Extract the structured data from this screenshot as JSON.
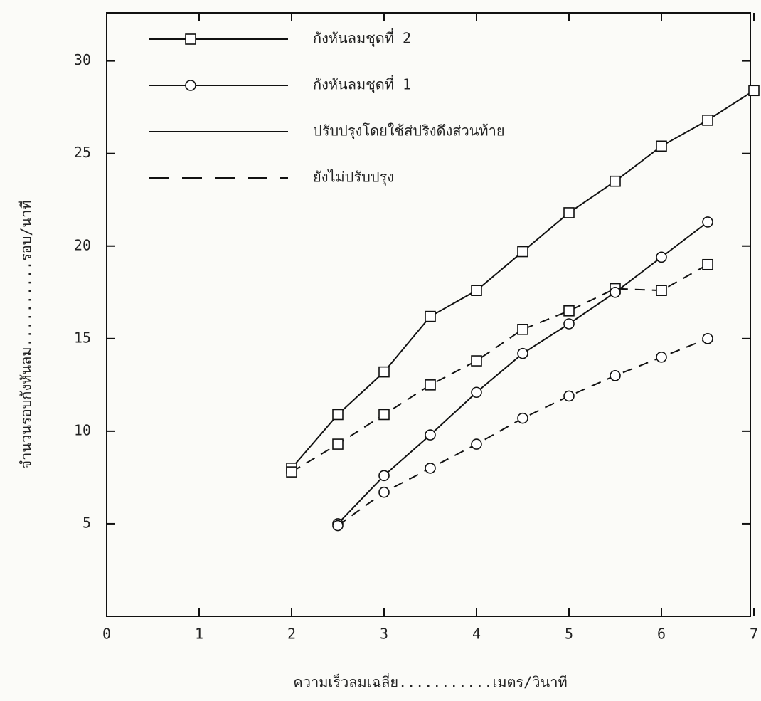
{
  "chart_data": {
    "type": "line",
    "x_label": "ความเร็วลมเฉลี่ย...........เมตร/วินาที",
    "y_label": "จำนวนรอบกังหันลม..........รอบ/นาที",
    "xlim": [
      0,
      7
    ],
    "ylim": [
      0,
      32.6
    ],
    "xticks": [
      0,
      1,
      2,
      3,
      4,
      5,
      6,
      7
    ],
    "yticks": [
      5,
      10,
      15,
      20,
      25,
      30
    ],
    "color": "#111111",
    "legend": [
      {
        "label": "กังหันลมชุดที่ 2",
        "marker": "square",
        "dashed": false
      },
      {
        "label": "กังหันลมชุดที่ 1",
        "marker": "circle",
        "dashed": false
      },
      {
        "label": "ปรับปรุงโดยใช้ส่ปริงดึงส่วนท้าย",
        "marker": "none",
        "dashed": false
      },
      {
        "label": "ยังไม่ปรับปรุง",
        "marker": "none",
        "dashed": true
      }
    ],
    "series": [
      {
        "marker": "square",
        "dashed": false,
        "x": [
          2,
          2.5,
          3,
          3.5,
          4,
          4.5,
          5,
          5.5,
          6,
          6.5,
          7
        ],
        "values": [
          8.0,
          10.9,
          13.2,
          16.2,
          17.6,
          19.7,
          21.8,
          23.5,
          25.4,
          26.8,
          28.4
        ]
      },
      {
        "marker": "square",
        "dashed": true,
        "x": [
          2,
          2.5,
          3,
          3.5,
          4,
          4.5,
          5,
          5.5,
          6,
          6.5
        ],
        "values": [
          7.8,
          9.3,
          10.9,
          12.5,
          13.8,
          15.5,
          16.5,
          17.7,
          17.6,
          19.0
        ]
      },
      {
        "marker": "circle",
        "dashed": false,
        "x": [
          2.5,
          3,
          3.5,
          4,
          4.5,
          5,
          5.5,
          6,
          6.5
        ],
        "values": [
          5.0,
          7.6,
          9.8,
          12.1,
          14.2,
          15.8,
          17.5,
          19.4,
          21.3
        ]
      },
      {
        "marker": "circle",
        "dashed": true,
        "x": [
          2.5,
          3,
          3.5,
          4,
          4.5,
          5,
          5.5,
          6,
          6.5
        ],
        "values": [
          4.9,
          6.7,
          8.0,
          9.3,
          10.7,
          11.9,
          13.0,
          14.0,
          15.0
        ]
      }
    ]
  }
}
